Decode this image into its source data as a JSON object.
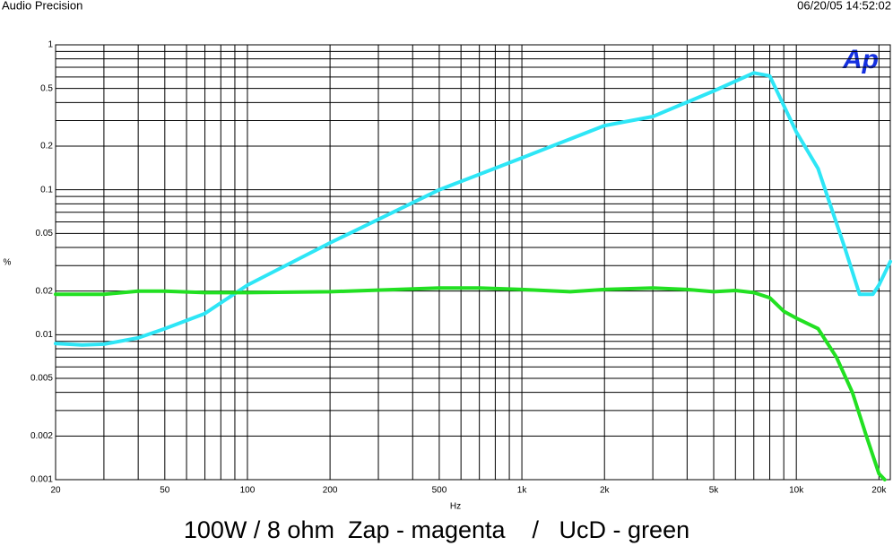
{
  "chart_data": {
    "type": "line",
    "header_left": "Audio Precision",
    "header_right": "06/20/05 14:52:02",
    "title": "100W / 8 ohm  Zap - magenta    /   UcD - green",
    "logo": "Ap",
    "xlabel": "Hz",
    "ylabel": "%",
    "xscale": "log",
    "yscale": "log",
    "grid": true,
    "xlim": [
      20,
      22000
    ],
    "ylim": [
      0.001,
      1
    ],
    "xticks": [
      20,
      50,
      100,
      200,
      500,
      {
        "value": 1000,
        "label": "1k"
      },
      {
        "value": 2000,
        "label": "2k"
      },
      {
        "value": 5000,
        "label": "5k"
      },
      {
        "value": 10000,
        "label": "10k"
      },
      {
        "value": 20000,
        "label": "20k"
      }
    ],
    "yticks": [
      1,
      0.5,
      0.2,
      0.1,
      0.05,
      0.02,
      0.01,
      0.005,
      0.002,
      0.001
    ],
    "xgrid": [
      20,
      30,
      40,
      50,
      60,
      70,
      80,
      90,
      100,
      200,
      300,
      400,
      500,
      600,
      700,
      800,
      900,
      1000,
      2000,
      3000,
      4000,
      5000,
      6000,
      7000,
      8000,
      9000,
      10000,
      20000
    ],
    "ygrid": [
      0.001,
      0.002,
      0.003,
      0.004,
      0.005,
      0.006,
      0.007,
      0.008,
      0.009,
      0.01,
      0.02,
      0.03,
      0.04,
      0.05,
      0.06,
      0.07,
      0.08,
      0.09,
      0.1,
      0.2,
      0.3,
      0.4,
      0.5,
      0.6,
      0.7,
      0.8,
      0.9,
      1
    ],
    "series": [
      {
        "color": "#2ee6f6",
        "x": [
          20,
          25,
          30,
          40,
          50,
          70,
          100,
          200,
          500,
          1000,
          2000,
          3000,
          5000,
          7000,
          8000,
          10000,
          12000,
          15000,
          17000,
          19000,
          20000,
          22000
        ],
        "values": [
          0.0087,
          0.0085,
          0.0086,
          0.0095,
          0.011,
          0.014,
          0.022,
          0.043,
          0.1,
          0.166,
          0.277,
          0.32,
          0.48,
          0.64,
          0.61,
          0.25,
          0.14,
          0.04,
          0.019,
          0.019,
          0.022,
          0.032
        ]
      },
      {
        "color": "#22e022",
        "x": [
          20,
          30,
          40,
          50,
          70,
          100,
          200,
          500,
          700,
          1000,
          1500,
          2000,
          3000,
          4000,
          5000,
          6000,
          7000,
          8000,
          9000,
          10000,
          12000,
          14000,
          16000,
          18000,
          20000,
          21000
        ],
        "values": [
          0.019,
          0.019,
          0.02,
          0.02,
          0.0195,
          0.0195,
          0.0198,
          0.021,
          0.021,
          0.0205,
          0.0198,
          0.0205,
          0.021,
          0.0205,
          0.0198,
          0.0202,
          0.0195,
          0.018,
          0.0145,
          0.013,
          0.011,
          0.007,
          0.004,
          0.002,
          0.0011,
          0.001
        ]
      }
    ]
  }
}
